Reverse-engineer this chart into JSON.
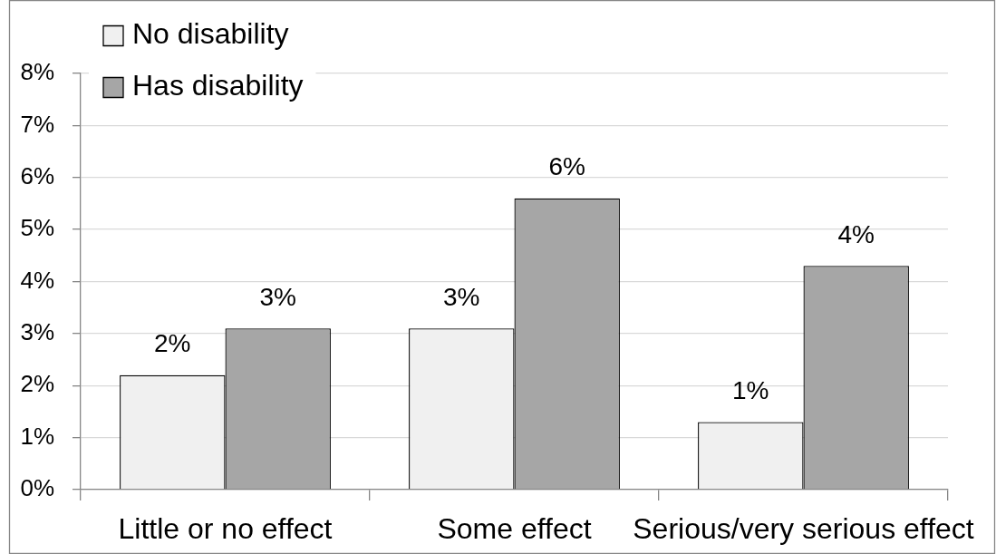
{
  "chart_data": {
    "type": "bar",
    "categories": [
      "Little or no effect",
      "Some effect",
      "Serious/very serious effect"
    ],
    "series": [
      {
        "name": "No disability",
        "color": "#f0f0f0",
        "values": [
          2.2,
          3.1,
          1.3
        ],
        "value_labels": [
          "2%",
          "3%",
          "1%"
        ]
      },
      {
        "name": "Has disability",
        "color": "#a6a6a6",
        "values": [
          3.1,
          5.6,
          4.3
        ],
        "value_labels": [
          "3%",
          "6%",
          "4%"
        ]
      }
    ],
    "ylim": [
      0,
      8
    ],
    "yticks": [
      {
        "value": 0,
        "label": "0%"
      },
      {
        "value": 1,
        "label": "1%"
      },
      {
        "value": 2,
        "label": "2%"
      },
      {
        "value": 3,
        "label": "3%"
      },
      {
        "value": 4,
        "label": "4%"
      },
      {
        "value": 5,
        "label": "5%"
      },
      {
        "value": 6,
        "label": "6%"
      },
      {
        "value": 7,
        "label": "7%"
      },
      {
        "value": 8,
        "label": "8%"
      }
    ],
    "grid": "y",
    "legend": "top left"
  }
}
